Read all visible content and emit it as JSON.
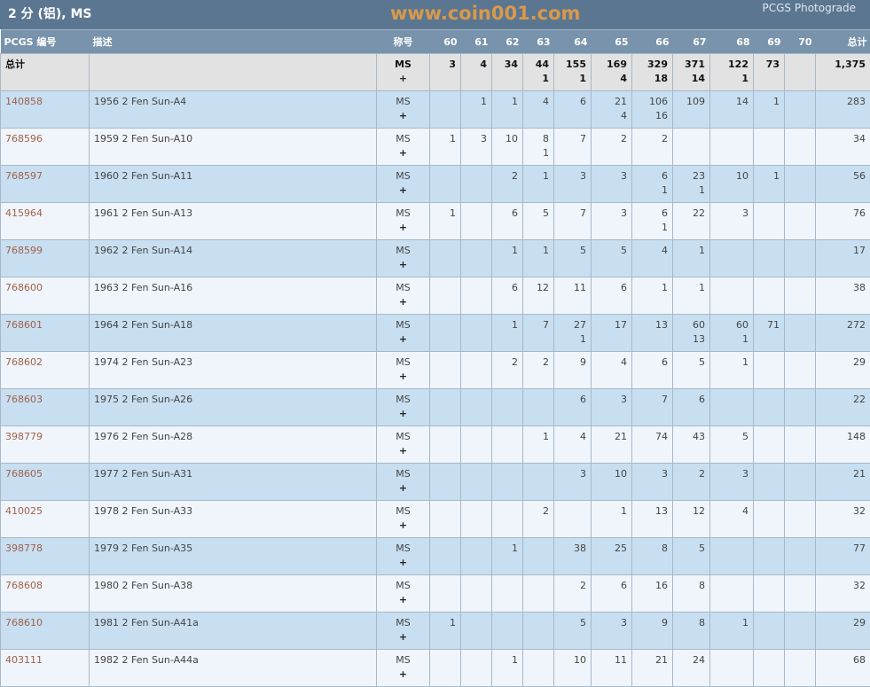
{
  "title": "2 分 (铝), MS",
  "photograde_link": "PCGS Photograde",
  "columns": [
    "PCGS 编号",
    "描述",
    "称号",
    "60",
    "61",
    "62",
    "63",
    "64",
    "65",
    "66",
    "67",
    "68",
    "69",
    "70",
    "总计"
  ],
  "total_row": {
    "label": "总计",
    "designation": "MS",
    "plus": "+",
    "cells": [
      [
        "3",
        ""
      ],
      [
        "4",
        ""
      ],
      [
        "34",
        ""
      ],
      [
        "44",
        "1"
      ],
      [
        "155",
        "1"
      ],
      [
        "169",
        "4"
      ],
      [
        "329",
        "18"
      ],
      [
        "371",
        "14"
      ],
      [
        "122",
        "1"
      ],
      [
        "73",
        ""
      ],
      [
        "",
        ""
      ]
    ],
    "total": "1,375"
  },
  "rows": [
    {
      "id": "140858",
      "desc": "1956 2 Fen Sun-A4",
      "designation": "MS",
      "plus": "+",
      "cells": [
        [
          "",
          ""
        ],
        [
          "1",
          ""
        ],
        [
          "1",
          ""
        ],
        [
          "4",
          ""
        ],
        [
          "6",
          ""
        ],
        [
          "21",
          "4"
        ],
        [
          "106",
          "16"
        ],
        [
          "109",
          ""
        ],
        [
          "14",
          ""
        ],
        [
          "1",
          ""
        ],
        [
          "",
          ""
        ]
      ],
      "total": "283"
    },
    {
      "id": "768596",
      "desc": "1959 2 Fen Sun-A10",
      "designation": "MS",
      "plus": "+",
      "cells": [
        [
          "1",
          ""
        ],
        [
          "3",
          ""
        ],
        [
          "10",
          ""
        ],
        [
          "8",
          "1"
        ],
        [
          "7",
          ""
        ],
        [
          "2",
          ""
        ],
        [
          "2",
          ""
        ],
        [
          "",
          ""
        ],
        [
          "",
          ""
        ],
        [
          "",
          ""
        ],
        [
          "",
          ""
        ]
      ],
      "total": "34"
    },
    {
      "id": "768597",
      "desc": "1960 2 Fen Sun-A11",
      "designation": "MS",
      "plus": "+",
      "cells": [
        [
          "",
          ""
        ],
        [
          "",
          ""
        ],
        [
          "2",
          ""
        ],
        [
          "1",
          ""
        ],
        [
          "3",
          ""
        ],
        [
          "3",
          ""
        ],
        [
          "6",
          "1"
        ],
        [
          "23",
          "1"
        ],
        [
          "10",
          ""
        ],
        [
          "1",
          ""
        ],
        [
          "",
          ""
        ]
      ],
      "total": "56"
    },
    {
      "id": "415964",
      "desc": "1961 2 Fen Sun-A13",
      "designation": "MS",
      "plus": "+",
      "cells": [
        [
          "1",
          ""
        ],
        [
          "",
          ""
        ],
        [
          "6",
          ""
        ],
        [
          "5",
          ""
        ],
        [
          "7",
          ""
        ],
        [
          "3",
          ""
        ],
        [
          "6",
          "1"
        ],
        [
          "22",
          ""
        ],
        [
          "3",
          ""
        ],
        [
          "",
          ""
        ],
        [
          "",
          ""
        ]
      ],
      "total": "76"
    },
    {
      "id": "768599",
      "desc": "1962 2 Fen Sun-A14",
      "designation": "MS",
      "plus": "+",
      "cells": [
        [
          "",
          ""
        ],
        [
          "",
          ""
        ],
        [
          "1",
          ""
        ],
        [
          "1",
          ""
        ],
        [
          "5",
          ""
        ],
        [
          "5",
          ""
        ],
        [
          "4",
          ""
        ],
        [
          "1",
          ""
        ],
        [
          "",
          ""
        ],
        [
          "",
          ""
        ],
        [
          "",
          ""
        ]
      ],
      "total": "17"
    },
    {
      "id": "768600",
      "desc": "1963 2 Fen Sun-A16",
      "designation": "MS",
      "plus": "+",
      "cells": [
        [
          "",
          ""
        ],
        [
          "",
          ""
        ],
        [
          "6",
          ""
        ],
        [
          "12",
          ""
        ],
        [
          "11",
          ""
        ],
        [
          "6",
          ""
        ],
        [
          "1",
          ""
        ],
        [
          "1",
          ""
        ],
        [
          "",
          ""
        ],
        [
          "",
          ""
        ],
        [
          "",
          ""
        ]
      ],
      "total": "38"
    },
    {
      "id": "768601",
      "desc": "1964 2 Fen Sun-A18",
      "designation": "MS",
      "plus": "+",
      "cells": [
        [
          "",
          ""
        ],
        [
          "",
          ""
        ],
        [
          "1",
          ""
        ],
        [
          "7",
          ""
        ],
        [
          "27",
          "1"
        ],
        [
          "17",
          ""
        ],
        [
          "13",
          ""
        ],
        [
          "60",
          "13"
        ],
        [
          "60",
          "1"
        ],
        [
          "71",
          ""
        ],
        [
          "",
          ""
        ]
      ],
      "total": "272"
    },
    {
      "id": "768602",
      "desc": "1974 2 Fen Sun-A23",
      "designation": "MS",
      "plus": "+",
      "cells": [
        [
          "",
          ""
        ],
        [
          "",
          ""
        ],
        [
          "2",
          ""
        ],
        [
          "2",
          ""
        ],
        [
          "9",
          ""
        ],
        [
          "4",
          ""
        ],
        [
          "6",
          ""
        ],
        [
          "5",
          ""
        ],
        [
          "1",
          ""
        ],
        [
          "",
          ""
        ],
        [
          "",
          ""
        ]
      ],
      "total": "29"
    },
    {
      "id": "768603",
      "desc": "1975 2 Fen Sun-A26",
      "designation": "MS",
      "plus": "+",
      "cells": [
        [
          "",
          ""
        ],
        [
          "",
          ""
        ],
        [
          "",
          ""
        ],
        [
          "",
          ""
        ],
        [
          "6",
          ""
        ],
        [
          "3",
          ""
        ],
        [
          "7",
          ""
        ],
        [
          "6",
          ""
        ],
        [
          "",
          ""
        ],
        [
          "",
          ""
        ],
        [
          "",
          ""
        ]
      ],
      "total": "22"
    },
    {
      "id": "398779",
      "desc": "1976 2 Fen Sun-A28",
      "designation": "MS",
      "plus": "+",
      "cells": [
        [
          "",
          ""
        ],
        [
          "",
          ""
        ],
        [
          "",
          ""
        ],
        [
          "1",
          ""
        ],
        [
          "4",
          ""
        ],
        [
          "21",
          ""
        ],
        [
          "74",
          ""
        ],
        [
          "43",
          ""
        ],
        [
          "5",
          ""
        ],
        [
          "",
          ""
        ],
        [
          "",
          ""
        ]
      ],
      "total": "148"
    },
    {
      "id": "768605",
      "desc": "1977 2 Fen Sun-A31",
      "designation": "MS",
      "plus": "+",
      "cells": [
        [
          "",
          ""
        ],
        [
          "",
          ""
        ],
        [
          "",
          ""
        ],
        [
          "",
          ""
        ],
        [
          "3",
          ""
        ],
        [
          "10",
          ""
        ],
        [
          "3",
          ""
        ],
        [
          "2",
          ""
        ],
        [
          "3",
          ""
        ],
        [
          "",
          ""
        ],
        [
          "",
          ""
        ]
      ],
      "total": "21"
    },
    {
      "id": "410025",
      "desc": "1978 2 Fen Sun-A33",
      "designation": "MS",
      "plus": "+",
      "cells": [
        [
          "",
          ""
        ],
        [
          "",
          ""
        ],
        [
          "",
          ""
        ],
        [
          "2",
          ""
        ],
        [
          "",
          ""
        ],
        [
          "1",
          ""
        ],
        [
          "13",
          ""
        ],
        [
          "12",
          ""
        ],
        [
          "4",
          ""
        ],
        [
          "",
          ""
        ],
        [
          "",
          ""
        ]
      ],
      "total": "32"
    },
    {
      "id": "398778",
      "desc": "1979 2 Fen Sun-A35",
      "designation": "MS",
      "plus": "+",
      "cells": [
        [
          "",
          ""
        ],
        [
          "",
          ""
        ],
        [
          "1",
          ""
        ],
        [
          "",
          ""
        ],
        [
          "38",
          ""
        ],
        [
          "25",
          ""
        ],
        [
          "8",
          ""
        ],
        [
          "5",
          ""
        ],
        [
          "",
          ""
        ],
        [
          "",
          ""
        ],
        [
          "",
          ""
        ]
      ],
      "total": "77"
    },
    {
      "id": "768608",
      "desc": "1980 2 Fen Sun-A38",
      "designation": "MS",
      "plus": "+",
      "cells": [
        [
          "",
          ""
        ],
        [
          "",
          ""
        ],
        [
          "",
          ""
        ],
        [
          "",
          ""
        ],
        [
          "2",
          ""
        ],
        [
          "6",
          ""
        ],
        [
          "16",
          ""
        ],
        [
          "8",
          ""
        ],
        [
          "",
          ""
        ],
        [
          "",
          ""
        ],
        [
          "",
          ""
        ]
      ],
      "total": "32"
    },
    {
      "id": "768610",
      "desc": "1981 2 Fen Sun-A41a",
      "designation": "MS",
      "plus": "+",
      "cells": [
        [
          "1",
          ""
        ],
        [
          "",
          ""
        ],
        [
          "",
          ""
        ],
        [
          "",
          ""
        ],
        [
          "5",
          ""
        ],
        [
          "3",
          ""
        ],
        [
          "9",
          ""
        ],
        [
          "8",
          ""
        ],
        [
          "1",
          ""
        ],
        [
          "",
          ""
        ],
        [
          "",
          ""
        ]
      ],
      "total": "29"
    },
    {
      "id": "403111",
      "desc": "1982 2 Fen Sun-A44a",
      "designation": "MS",
      "plus": "+",
      "cells": [
        [
          "",
          ""
        ],
        [
          "",
          ""
        ],
        [
          "1",
          ""
        ],
        [
          "",
          ""
        ],
        [
          "10",
          ""
        ],
        [
          "11",
          ""
        ],
        [
          "21",
          ""
        ],
        [
          "24",
          ""
        ],
        [
          "",
          ""
        ],
        [
          "",
          ""
        ],
        [
          "",
          ""
        ]
      ],
      "total": "68"
    }
  ],
  "watermark": "www.coin001.com",
  "colors": {
    "title_bar": "#5b7691",
    "header": "#7893ab",
    "row_alt": "#c8dff1",
    "row": "#eff5fa",
    "link": "#a0604a"
  }
}
